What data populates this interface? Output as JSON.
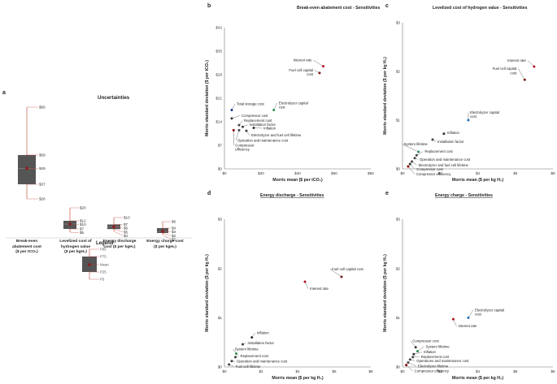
{
  "panels": {
    "a": {
      "label": "a",
      "title": "Uncertainties"
    },
    "b": {
      "label": "b"
    },
    "c": {
      "label": "c"
    },
    "d": {
      "label": "d"
    },
    "e": {
      "label": "e"
    }
  },
  "legend": {
    "title": "Legend",
    "items": [
      "P95",
      "P75",
      "Mean",
      "P25",
      "P5"
    ]
  },
  "colors": {
    "box": "#555555",
    "whisker": "#c0392b",
    "mean": "#8b1a1a",
    "axis": "#555555"
  },
  "chart_data": [
    {
      "id": "a",
      "type": "box",
      "title": "Uncertainties",
      "categories": [
        "Break-even abatement cost ($ per tCO₂)",
        "Levelized cost of hydrogen value ($ per kgH₂)",
        "Energy discharge cost ($ per kgH₂)",
        "Energy charge cost ($ per kgH₂)"
      ],
      "category_lines": [
        [
          "Break-even",
          "abatement cost",
          "($ per tCO₂)"
        ],
        [
          "Levelized cost of",
          "hydrogen value",
          "($ per kgH₂)"
        ],
        [
          "Energy discharge",
          "cost ($ per kgH₂)"
        ],
        [
          "Energy charge cost",
          "($ per kgH₂)"
        ]
      ],
      "boxes": [
        {
          "p5": 26,
          "p25": 37,
          "mean": 49,
          "p75": 59,
          "p95": 95,
          "labels": [
            "$95",
            "$59",
            "$49",
            "$37",
            "$26"
          ]
        },
        {
          "p5": 5,
          "p25": 7,
          "mean": 10,
          "p75": 12,
          "p95": 20,
          "labels": [
            "$20",
            "$12",
            "$10",
            "$7",
            "$5"
          ]
        },
        {
          "p5": 4,
          "p25": 5,
          "mean": 6,
          "p75": 7,
          "p95": 10,
          "labels": [
            "$10",
            "$7",
            "$6",
            "$5",
            "$4"
          ]
        },
        {
          "p5": 2,
          "p25": 2.5,
          "mean": 3,
          "p75": 4,
          "p95": 6,
          "labels": [
            "$6",
            "$4",
            "$3",
            "$2",
            "$2"
          ]
        }
      ]
    },
    {
      "id": "b",
      "type": "scatter",
      "title": "Break-even abatement cost - Sensitivities",
      "xlabel": "Morris mean ($ per tCO₂)",
      "ylabel": "Morris standard deviation ($ per tCO₂)",
      "xlim": [
        0,
        80
      ],
      "ylim": [
        0,
        42
      ],
      "xticks": [
        "$0",
        "$20",
        "$40",
        "$60",
        "$80"
      ],
      "yticks": [
        "$0",
        "$7",
        "$14",
        "$21",
        "$28",
        "$35",
        "$42"
      ],
      "points": [
        {
          "name": "Interest rate",
          "x": 54,
          "y": 30.5,
          "color": "#b0141e"
        },
        {
          "name": "Fuel cell capital cost",
          "x": 52,
          "y": 28.5,
          "color": "#7a1a1a"
        },
        {
          "name": "Electrolyzer capital cost",
          "x": 27,
          "y": 17.5,
          "color": "#2e8b57"
        },
        {
          "name": "Total storage cost",
          "x": 4,
          "y": 17.5,
          "color": "#1f3a93"
        },
        {
          "name": "Compressor cost",
          "x": 4,
          "y": 15,
          "color": "#333333"
        },
        {
          "name": "Replacement cost",
          "x": 8,
          "y": 13,
          "color": "#444444"
        },
        {
          "name": "Installation factor",
          "x": 10,
          "y": 12.5,
          "color": "#444444"
        },
        {
          "name": "Inflation",
          "x": 16,
          "y": 12.2,
          "color": "#333333"
        },
        {
          "name": "Electrolyzer and fuel cell lifetime",
          "x": 12,
          "y": 11.3,
          "color": "#444444"
        },
        {
          "name": "Operation and maintenance cost",
          "x": 8,
          "y": 11.5,
          "color": "#444444"
        },
        {
          "name": "Compressor efficiency",
          "x": 5,
          "y": 11.5,
          "color": "#8b0000"
        }
      ]
    },
    {
      "id": "c",
      "type": "scatter",
      "title": "Levelized cost of hydrogen value - Sensitivities",
      "xlabel": "Morris mean ($ per kg H₂)",
      "ylabel": "Morris standard deviation ($ per kg H₂)",
      "xlim": [
        0,
        8
      ],
      "ylim": [
        0,
        3
      ],
      "xticks": [
        "$0",
        "$2",
        "$4",
        "$6",
        "$8"
      ],
      "yticks": [
        "$0",
        "$1",
        "$2",
        "$3"
      ],
      "points": [
        {
          "name": "Interest rate",
          "x": 7.0,
          "y": 2.1,
          "color": "#b0141e"
        },
        {
          "name": "Fuel cell capital cost",
          "x": 6.5,
          "y": 1.83,
          "color": "#7a1a1a"
        },
        {
          "name": "Electrolyzer capital cost",
          "x": 3.5,
          "y": 1.0,
          "color": "#1f6fb4"
        },
        {
          "name": "Inflation",
          "x": 2.2,
          "y": 0.72,
          "color": "#333333"
        },
        {
          "name": "Installation factor",
          "x": 1.6,
          "y": 0.6,
          "color": "#444444"
        },
        {
          "name": "System lifetime",
          "x": 0.85,
          "y": 0.35,
          "color": "#2e8b57"
        },
        {
          "name": "Replacement cost",
          "x": 0.75,
          "y": 0.28,
          "color": "#444444"
        },
        {
          "name": "Operation and maintenance cost",
          "x": 0.65,
          "y": 0.22,
          "color": "#444444"
        },
        {
          "name": "Electrolyzer and fuel cell lifetime",
          "x": 0.5,
          "y": 0.15,
          "color": "#444444"
        },
        {
          "name": "Compressor cost",
          "x": 0.4,
          "y": 0.1,
          "color": "#333333"
        },
        {
          "name": "Compressor efficiency",
          "x": 0.3,
          "y": 0.05,
          "color": "#8b0000"
        }
      ]
    },
    {
      "id": "d",
      "type": "scatter",
      "title": "Energy discharge - Sensitivities",
      "xlabel": "Morris mean ($ per kg H₂)",
      "ylabel": "Morris standard deviation ($ per kg H₂)",
      "xlim": [
        0,
        8
      ],
      "ylim": [
        0,
        3
      ],
      "xticks": [
        "$0",
        "$2",
        "$4",
        "$6",
        "$8"
      ],
      "yticks": [
        "$0",
        "$1",
        "$2",
        "$3"
      ],
      "points": [
        {
          "name": "Fuel cell capital cost",
          "x": 6.4,
          "y": 1.83,
          "color": "#7a1a1a"
        },
        {
          "name": "Interest rate",
          "x": 4.4,
          "y": 1.73,
          "color": "#b0141e"
        },
        {
          "name": "Inflation",
          "x": 1.5,
          "y": 0.6,
          "color": "#333333"
        },
        {
          "name": "Installation factor",
          "x": 1.0,
          "y": 0.46,
          "color": "#444444"
        },
        {
          "name": "System lifetime",
          "x": 0.65,
          "y": 0.27,
          "color": "#2e8b57"
        },
        {
          "name": "Replacement cost",
          "x": 0.6,
          "y": 0.2,
          "color": "#444444"
        },
        {
          "name": "Operation and maintenance cost",
          "x": 0.4,
          "y": 0.12,
          "color": "#444444"
        },
        {
          "name": "Fuel cell lifetime",
          "x": 0.25,
          "y": 0.05,
          "color": "#444444"
        }
      ]
    },
    {
      "id": "e",
      "type": "scatter",
      "title": "Energy charge - Sensitivities",
      "xlabel": "Morris mean ($ per kg H₂)",
      "ylabel": "Morris standard deviation ($ per kg H₂)",
      "xlim": [
        0,
        8
      ],
      "ylim": [
        0,
        3
      ],
      "xticks": [
        "$0",
        "$2",
        "$4",
        "$6",
        "$8"
      ],
      "yticks": [
        "$0",
        "$1",
        "$2",
        "$3"
      ],
      "points": [
        {
          "name": "Electrolyzer capital cost",
          "x": 3.5,
          "y": 1.0,
          "color": "#1f6fb4"
        },
        {
          "name": "Interest rate",
          "x": 2.7,
          "y": 0.97,
          "color": "#b0141e"
        },
        {
          "name": "Compressor cost",
          "x": 0.7,
          "y": 0.4,
          "color": "#333333"
        },
        {
          "name": "System lifetime",
          "x": 0.8,
          "y": 0.32,
          "color": "#2e8b57"
        },
        {
          "name": "Inflation",
          "x": 0.6,
          "y": 0.26,
          "color": "#333333"
        },
        {
          "name": "Replacement cost",
          "x": 0.55,
          "y": 0.2,
          "color": "#444444"
        },
        {
          "name": "Operations and maintenance cost",
          "x": 0.4,
          "y": 0.15,
          "color": "#444444"
        },
        {
          "name": "Electrolyzer lifetime",
          "x": 0.3,
          "y": 0.09,
          "color": "#444444"
        },
        {
          "name": "Compressor efficiency",
          "x": 0.2,
          "y": 0.04,
          "color": "#8b0000"
        }
      ]
    }
  ]
}
